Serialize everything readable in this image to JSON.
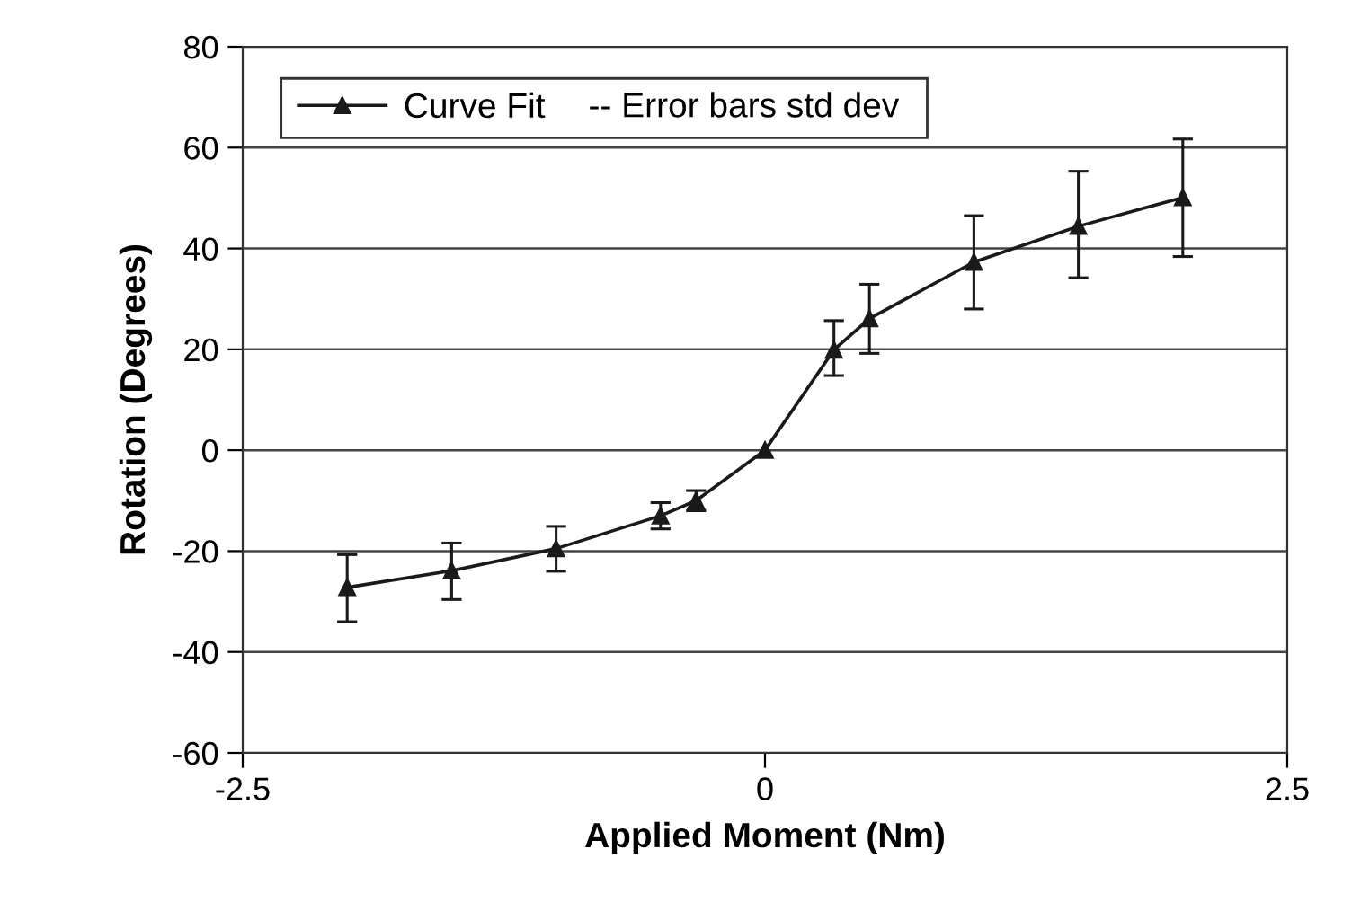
{
  "chart_data": {
    "type": "line",
    "xlabel": "Applied Moment (Nm)",
    "ylabel": "Rotation (Degrees)",
    "x": [
      -2,
      -1.5,
      -1,
      -0.5,
      -0.33,
      0,
      0.33,
      0.5,
      1,
      1.5,
      2
    ],
    "series": [
      {
        "name": "Curve Fit",
        "color": "#1a1a1a",
        "values": [
          -27.2,
          -23.9,
          -19.5,
          -13,
          -10,
          0,
          19.9,
          26.1,
          37.3,
          44.4,
          50.1
        ],
        "errors": [
          [
            -34,
            -20.7
          ],
          [
            -29.6,
            -18.4
          ],
          [
            -24,
            -15.1
          ],
          [
            -15.6,
            -10.4
          ],
          [
            -12,
            -8
          ],
          null,
          [
            14.8,
            25.7
          ],
          [
            19.2,
            32.9
          ],
          [
            28,
            46.5
          ],
          [
            34.2,
            55.3
          ],
          [
            38.4,
            61.7
          ]
        ]
      }
    ],
    "annotations": [
      "-- Error bars std dev"
    ],
    "marker": "triangle",
    "line_style": "solid",
    "xlim": [
      -2.5,
      2.5
    ],
    "xticks": [
      -2.5,
      0,
      2.5
    ],
    "ylim": [
      -60,
      80
    ],
    "yticks": [
      -60,
      -40,
      -20,
      0,
      20,
      40,
      60,
      80
    ],
    "grid": "y",
    "legend": "top left"
  }
}
